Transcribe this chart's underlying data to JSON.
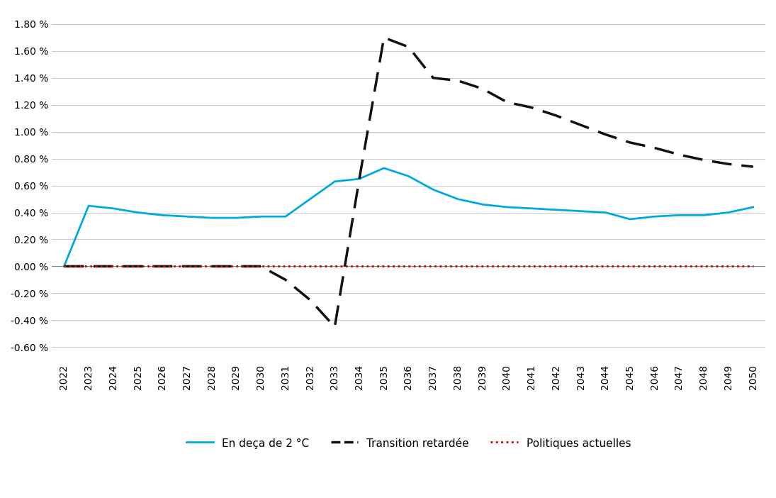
{
  "years": [
    2022,
    2023,
    2024,
    2025,
    2026,
    2027,
    2028,
    2029,
    2030,
    2031,
    2032,
    2033,
    2034,
    2035,
    2036,
    2037,
    2038,
    2039,
    2040,
    2041,
    2042,
    2043,
    2044,
    2045,
    2046,
    2047,
    2048,
    2049,
    2050
  ],
  "below2c": [
    0.0,
    0.45,
    0.43,
    0.4,
    0.38,
    0.37,
    0.36,
    0.36,
    0.37,
    0.37,
    0.5,
    0.63,
    0.65,
    0.73,
    0.67,
    0.57,
    0.5,
    0.46,
    0.44,
    0.43,
    0.42,
    0.41,
    0.4,
    0.35,
    0.37,
    0.38,
    0.38,
    0.4,
    0.44
  ],
  "delayed": [
    0.0,
    0.0,
    0.0,
    0.0,
    0.0,
    0.0,
    0.0,
    0.0,
    0.0,
    -0.1,
    -0.25,
    -0.45,
    0.65,
    1.7,
    1.63,
    1.4,
    1.38,
    1.32,
    1.22,
    1.18,
    1.12,
    1.05,
    0.98,
    0.92,
    0.88,
    0.83,
    0.79,
    0.76,
    0.74
  ],
  "current_policies": [
    0.0,
    0.0,
    0.0,
    0.0,
    0.0,
    0.0,
    0.0,
    0.0,
    0.0,
    0.0,
    0.0,
    0.0,
    0.0,
    0.0,
    0.0,
    0.0,
    0.0,
    0.0,
    0.0,
    0.0,
    0.0,
    0.0,
    0.0,
    0.0,
    0.0,
    0.0,
    0.0,
    0.0,
    0.0
  ],
  "below2c_color": "#00AADD",
  "delayed_color": "#111111",
  "current_policies_color": "#CC0000",
  "ylim": [
    -0.7,
    1.9
  ],
  "yticks": [
    -0.6,
    -0.4,
    -0.2,
    0.0,
    0.2,
    0.4,
    0.6,
    0.8,
    1.0,
    1.2,
    1.4,
    1.6,
    1.8
  ],
  "legend_below2c": "En deça de 2 °C",
  "legend_delayed": "Transition retardée",
  "legend_current": "Politiques actuelles",
  "background_color": "#ffffff",
  "grid_color": "#cccccc"
}
